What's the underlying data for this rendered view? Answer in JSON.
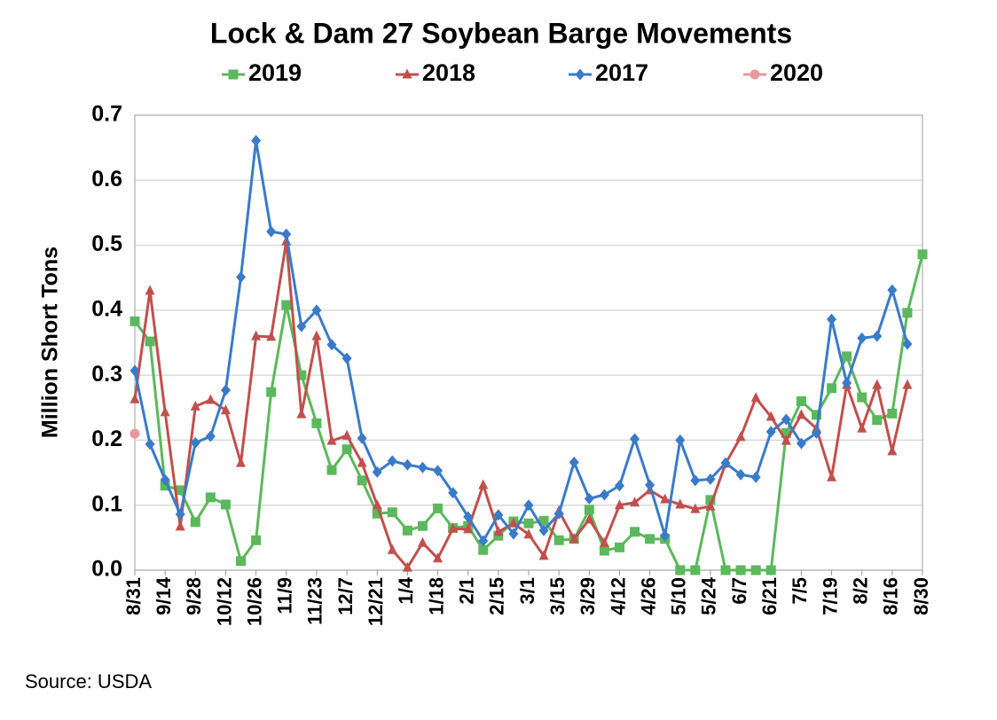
{
  "chart_data": {
    "type": "line",
    "title": "Lock & Dam 27 Soybean Barge Movements",
    "y_label": "Million Short Tons",
    "source": "Source:  USDA",
    "categories": [
      "8/31",
      null,
      "9/14",
      null,
      "9/28",
      null,
      "10/12",
      null,
      "10/26",
      null,
      "11/9",
      null,
      "11/23",
      null,
      "12/7",
      null,
      "12/21",
      null,
      "1/4",
      null,
      "1/18",
      null,
      "2/1",
      null,
      "2/15",
      null,
      "3/1",
      null,
      "3/15",
      null,
      "3/29",
      null,
      "4/12",
      null,
      "4/26",
      null,
      "5/10",
      null,
      "5/24",
      null,
      "6/7",
      null,
      "6/21",
      null,
      "7/5",
      null,
      "7/19",
      null,
      "8/2",
      null,
      "8/16",
      null,
      "8/30"
    ],
    "ylim": [
      0,
      0.7
    ],
    "yticks": [
      {
        "value": 0,
        "label": "0.0"
      },
      0.1,
      0.2,
      0.3,
      0.4,
      0.5,
      0.6,
      0.7
    ],
    "grid": true,
    "legend": "top",
    "series": [
      {
        "name": "2019",
        "color": "#5cb85c",
        "marker": "square",
        "values": [
          0.383,
          0.352,
          0.13,
          0.123,
          0.074,
          0.112,
          0.101,
          0.014,
          0.046,
          0.274,
          0.408,
          0.3,
          0.226,
          0.154,
          0.186,
          0.138,
          0.087,
          0.089,
          0.061,
          0.068,
          0.095,
          0.065,
          0.068,
          0.031,
          0.053,
          0.075,
          0.072,
          0.076,
          0.046,
          0.048,
          0.093,
          0.03,
          0.035,
          0.059,
          0.048,
          0.048,
          0,
          0,
          0.108,
          0,
          0,
          0,
          0,
          0.211,
          0.26,
          0.239,
          0.28,
          0.329,
          0.266,
          0.231,
          0.241,
          0.396,
          0.486
        ]
      },
      {
        "name": "2018",
        "color": "#c0504d",
        "marker": "triangle",
        "values": [
          0.263,
          0.43,
          0.243,
          0.067,
          0.252,
          0.262,
          0.246,
          0.165,
          0.36,
          0.359,
          0.506,
          0.24,
          0.36,
          0.199,
          0.207,
          0.165,
          0.1,
          0.031,
          0.004,
          0.042,
          0.018,
          0.064,
          0.063,
          0.131,
          0.059,
          0.072,
          0.055,
          0.022,
          0.091,
          0.048,
          0.078,
          0.042,
          0.1,
          0.104,
          0.123,
          0.109,
          0.101,
          0.094,
          0.098,
          0.164,
          0.205,
          0.265,
          0.236,
          0.199,
          0.239,
          0.218,
          0.143,
          0.285,
          0.218,
          0.285,
          0.183,
          0.285,
          null
        ]
      },
      {
        "name": "2017",
        "color": "#3a7bc8",
        "marker": "diamond",
        "values": [
          0.307,
          0.194,
          0.139,
          0.086,
          0.196,
          0.206,
          0.277,
          0.451,
          0.661,
          0.521,
          0.517,
          0.375,
          0.4,
          0.347,
          0.326,
          0.203,
          0.151,
          0.168,
          0.162,
          0.158,
          0.153,
          0.119,
          0.082,
          0.045,
          0.085,
          0.056,
          0.1,
          0.061,
          0.087,
          0.166,
          0.11,
          0.116,
          0.13,
          0.202,
          0.131,
          0.053,
          0.2,
          0.138,
          0.14,
          0.165,
          0.147,
          0.143,
          0.213,
          0.232,
          0.195,
          0.211,
          0.386,
          0.288,
          0.357,
          0.36,
          0.431,
          0.348,
          null
        ]
      },
      {
        "name": "2020",
        "color": "#e89a9a",
        "marker": "circle",
        "values": [
          0.21,
          null,
          null,
          null,
          null,
          null,
          null,
          null,
          null,
          null,
          null,
          null,
          null,
          null,
          null,
          null,
          null,
          null,
          null,
          null,
          null,
          null,
          null,
          null,
          null,
          null,
          null,
          null,
          null,
          null,
          null,
          null,
          null,
          null,
          null,
          null,
          null,
          null,
          null,
          null,
          null,
          null,
          null,
          null,
          null,
          null,
          null,
          null,
          null,
          null,
          null,
          null,
          null
        ]
      }
    ]
  }
}
